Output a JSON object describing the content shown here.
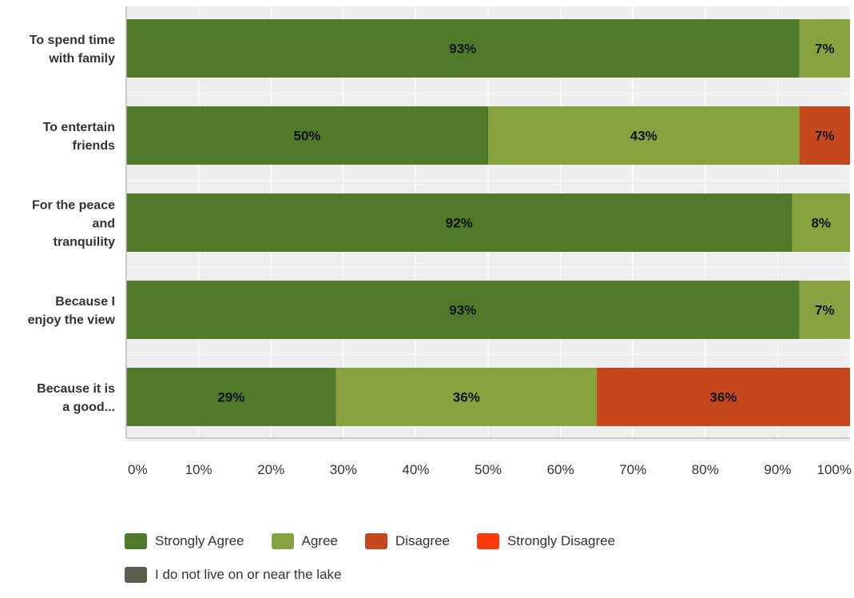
{
  "chart_data": {
    "type": "bar",
    "orientation": "horizontal",
    "stacked": true,
    "categories": [
      [
        "To spend time",
        "with family"
      ],
      [
        "To entertain",
        "friends"
      ],
      [
        "For the peace",
        "and",
        "tranquility"
      ],
      [
        "Because I",
        "enjoy the view"
      ],
      [
        "Because it is",
        "a good..."
      ]
    ],
    "series": [
      {
        "name": "Strongly Agree",
        "color": "#4e7a2a",
        "values": [
          93,
          50,
          92,
          93,
          29
        ]
      },
      {
        "name": "Agree",
        "color": "#86a33f",
        "values": [
          7,
          43,
          8,
          7,
          36
        ]
      },
      {
        "name": "Disagree",
        "color": "#c5471d",
        "values": [
          0,
          7,
          0,
          0,
          36
        ]
      },
      {
        "name": "Strongly Disagree",
        "color": "#ff3a0a",
        "values": [
          0,
          0,
          0,
          0,
          0
        ]
      },
      {
        "name": "I do not live on or near the lake",
        "color": "#5d5e50",
        "values": [
          0,
          0,
          0,
          0,
          0
        ]
      }
    ],
    "data_labels": [
      [
        "93%",
        "7%",
        "",
        "",
        ""
      ],
      [
        "50%",
        "43%",
        "7%",
        "",
        ""
      ],
      [
        "92%",
        "8%",
        "",
        "",
        ""
      ],
      [
        "93%",
        "7%",
        "",
        "",
        ""
      ],
      [
        "29%",
        "36%",
        "36%",
        "",
        ""
      ]
    ],
    "xlim": [
      0,
      100
    ],
    "x_ticks": [
      "0%",
      "10%",
      "20%",
      "30%",
      "40%",
      "50%",
      "60%",
      "70%",
      "80%",
      "90%",
      "100%"
    ],
    "grid": true,
    "legend_position": "bottom",
    "title": "",
    "xlabel": "",
    "ylabel": ""
  }
}
